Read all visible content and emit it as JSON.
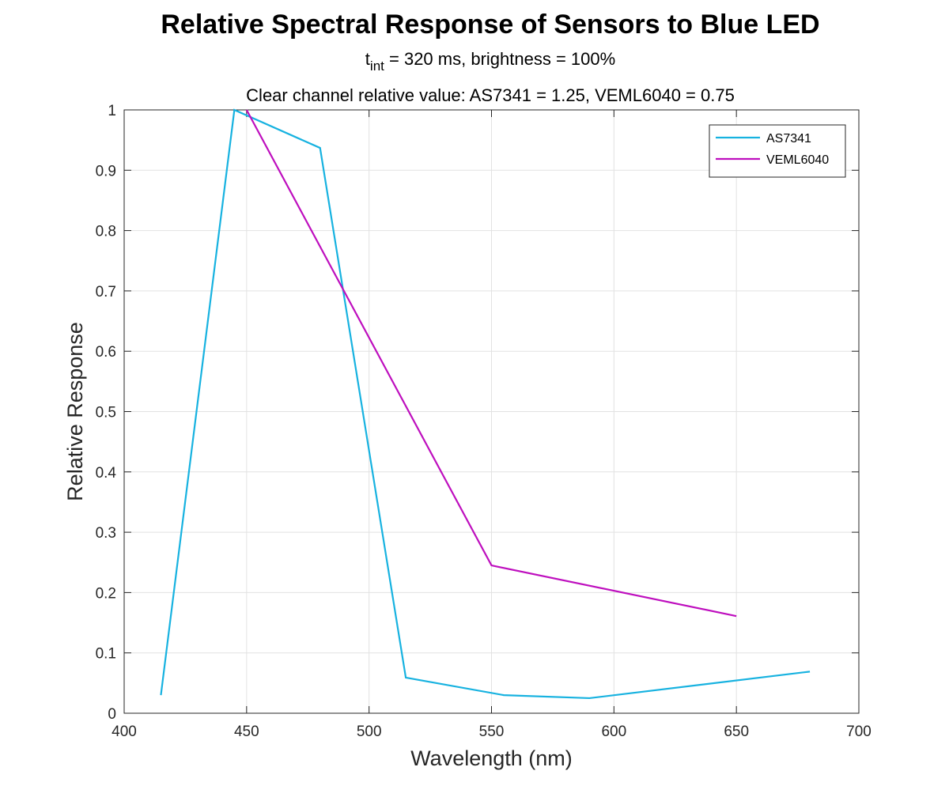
{
  "chart_data": {
    "type": "line",
    "title": "Relative Spectral Response of Sensors to Blue LED",
    "subtitle_main": "t",
    "subtitle_sub": "int",
    "subtitle_rest": " = 320 ms, brightness = 100%",
    "subtitle2": "Clear channel relative value: AS7341 = 1.25, VEML6040 = 0.75",
    "xlabel": "Wavelength (nm)",
    "ylabel": "Relative Response",
    "xlim": [
      400,
      700
    ],
    "ylim": [
      0,
      1
    ],
    "xticks": [
      400,
      450,
      500,
      550,
      600,
      650,
      700
    ],
    "yticks": [
      0,
      0.1,
      0.2,
      0.3,
      0.4,
      0.5,
      0.6,
      0.7,
      0.8,
      0.9,
      1
    ],
    "grid": true,
    "legend_position": "top-right",
    "series": [
      {
        "name": "AS7341",
        "color": "#17B2E0",
        "x": [
          415,
          445,
          480,
          515,
          555,
          590,
          680
        ],
        "y": [
          0.03,
          1.0,
          0.937,
          0.059,
          0.03,
          0.025,
          0.069
        ]
      },
      {
        "name": "VEML6040",
        "color": "#BE0FBE",
        "x": [
          450,
          550,
          650
        ],
        "y": [
          1.0,
          0.245,
          0.161
        ]
      }
    ]
  }
}
